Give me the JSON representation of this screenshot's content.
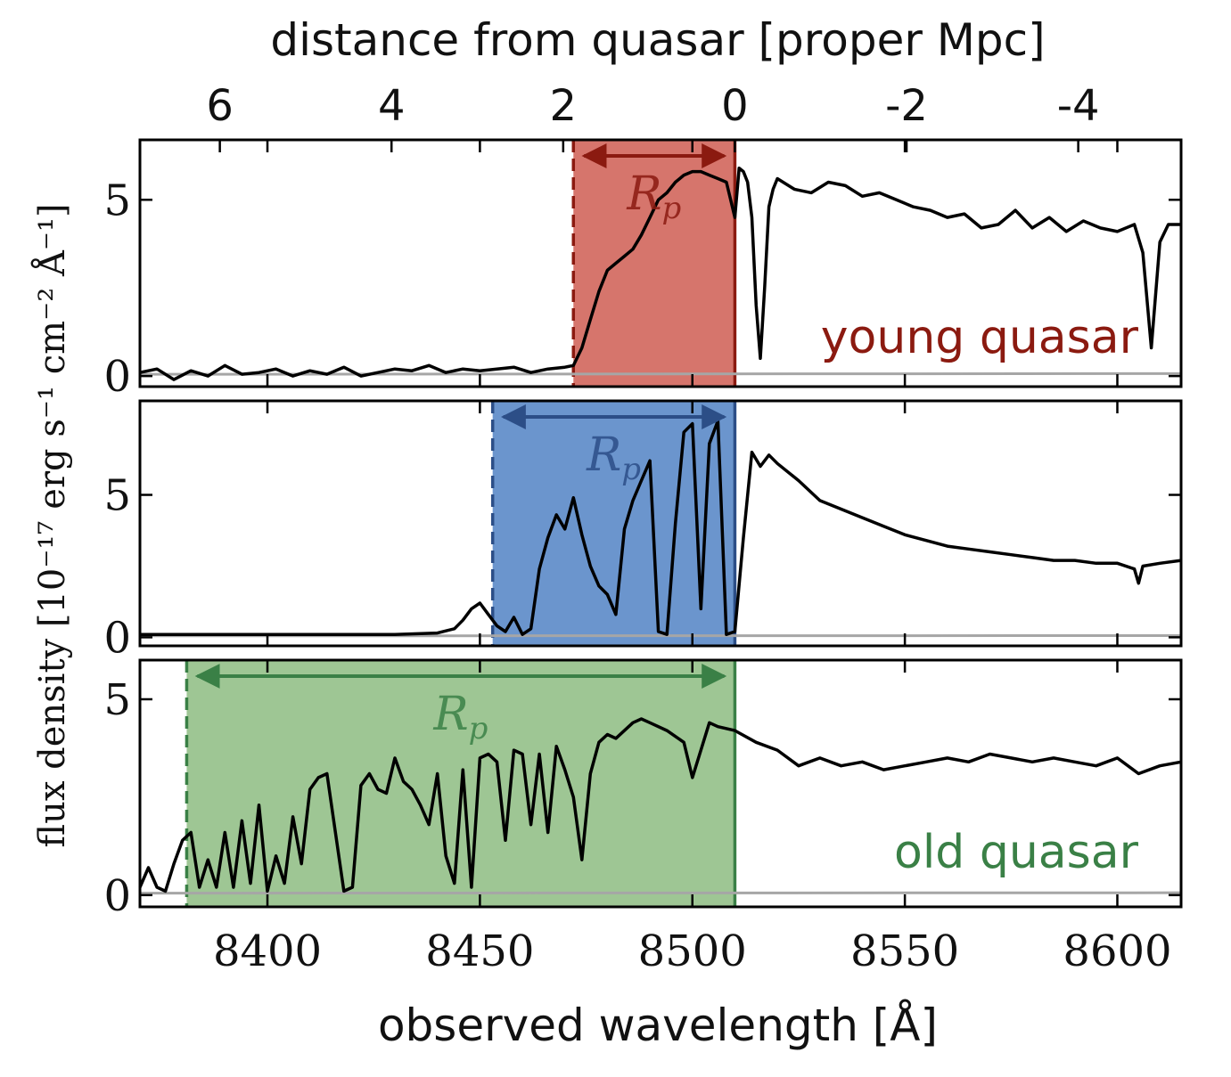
{
  "figure": {
    "top_axis_label": "distance from quasar [proper Mpc]",
    "bottom_axis_label": "observed wavelength [Å]",
    "y_axis_label": "flux density [10⁻¹⁷ erg s⁻¹ cm⁻² Å⁻¹]",
    "ruler_label": "Rp"
  },
  "chart_data": {
    "type": "line",
    "x_axis": {
      "label": "observed wavelength [Å]",
      "range": [
        8370,
        8615
      ],
      "ticks": [
        8400,
        8450,
        8500,
        8550,
        8600
      ],
      "tick_labels": [
        "8400",
        "8450",
        "8500",
        "8550",
        "8600"
      ]
    },
    "top_axis": {
      "label": "distance from quasar [proper Mpc]",
      "ticks": [
        6,
        4,
        2,
        0,
        -2,
        -4
      ],
      "tick_labels": [
        "6",
        "4",
        "2",
        "0",
        "-2",
        "-4"
      ],
      "wavelength_at_zero": 8510,
      "angstrom_per_mpc": 20.2
    },
    "y_axis_label": "flux density [10⁻¹⁷ erg s⁻¹ cm⁻² Å⁻¹]",
    "grid": false,
    "panels": [
      {
        "label": "young quasar",
        "color": "#8b1a10",
        "fill": "#d6756c",
        "ylim": [
          -0.3,
          6.7
        ],
        "yticks": [
          0,
          5
        ],
        "ytick_labels": [
          "0",
          "5"
        ],
        "region": [
          8472,
          8510
        ],
        "arrow_label": "Rp",
        "spectrum": {
          "x": [
            8370,
            8374,
            8378,
            8382,
            8386,
            8390,
            8394,
            8398,
            8402,
            8406,
            8410,
            8414,
            8418,
            8422,
            8426,
            8430,
            8434,
            8438,
            8442,
            8446,
            8450,
            8454,
            8458,
            8462,
            8466,
            8470,
            8472,
            8474,
            8476,
            8478,
            8480,
            8482,
            8484,
            8486,
            8488,
            8490,
            8492,
            8494,
            8496,
            8498,
            8500,
            8502,
            8504,
            8506,
            8508,
            8509,
            8510,
            8511,
            8512,
            8513,
            8514,
            8515,
            8516,
            8517,
            8518,
            8519,
            8520,
            8524,
            8528,
            8532,
            8536,
            8540,
            8544,
            8548,
            8552,
            8556,
            8560,
            8564,
            8568,
            8572,
            8576,
            8580,
            8584,
            8588,
            8592,
            8596,
            8600,
            8604,
            8606,
            8608,
            8610,
            8612,
            8615
          ],
          "y": [
            0.1,
            0.2,
            -0.1,
            0.15,
            0.0,
            0.3,
            0.05,
            0.1,
            0.2,
            0.0,
            0.15,
            0.05,
            0.25,
            0.0,
            0.1,
            0.2,
            0.15,
            0.3,
            0.1,
            0.2,
            0.15,
            0.2,
            0.25,
            0.1,
            0.2,
            0.25,
            0.3,
            0.8,
            1.6,
            2.4,
            3.0,
            3.2,
            3.4,
            3.6,
            4.0,
            4.5,
            5.0,
            5.2,
            5.5,
            5.7,
            5.8,
            5.8,
            5.7,
            5.6,
            5.5,
            5.0,
            4.5,
            5.9,
            5.8,
            5.5,
            4.5,
            2.0,
            0.5,
            2.5,
            4.8,
            5.3,
            5.6,
            5.3,
            5.2,
            5.5,
            5.4,
            5.1,
            5.2,
            5.0,
            4.8,
            4.7,
            4.5,
            4.6,
            4.2,
            4.3,
            4.7,
            4.2,
            4.5,
            4.1,
            4.4,
            4.2,
            4.1,
            4.3,
            3.5,
            0.8,
            3.8,
            4.3,
            4.3
          ]
        },
        "error": {
          "x": [
            8370,
            8615
          ],
          "y": [
            0.05,
            0.07
          ]
        }
      },
      {
        "label": "",
        "color": "#2c4e87",
        "fill": "#6b95cd",
        "ylim": [
          -0.3,
          8.3
        ],
        "yticks": [
          0,
          5
        ],
        "ytick_labels": [
          "0",
          "5"
        ],
        "region": [
          8453,
          8510
        ],
        "arrow_label": "Rp",
        "spectrum": {
          "x": [
            8370,
            8380,
            8390,
            8400,
            8410,
            8420,
            8430,
            8440,
            8444,
            8446,
            8448,
            8450,
            8452,
            8454,
            8456,
            8458,
            8460,
            8462,
            8464,
            8466,
            8468,
            8470,
            8472,
            8474,
            8476,
            8478,
            8480,
            8482,
            8484,
            8486,
            8488,
            8490,
            8492,
            8494,
            8496,
            8498,
            8500,
            8502,
            8504,
            8506,
            8508,
            8510,
            8512,
            8514,
            8516,
            8518,
            8520,
            8525,
            8530,
            8535,
            8540,
            8545,
            8550,
            8555,
            8560,
            8565,
            8570,
            8575,
            8580,
            8585,
            8590,
            8595,
            8600,
            8604,
            8605,
            8606,
            8610,
            8615
          ],
          "y": [
            0.1,
            0.1,
            0.1,
            0.1,
            0.1,
            0.1,
            0.1,
            0.15,
            0.3,
            0.6,
            1.0,
            1.2,
            0.8,
            0.4,
            0.2,
            0.7,
            0.1,
            0.3,
            2.4,
            3.5,
            4.3,
            3.8,
            4.9,
            3.6,
            2.5,
            1.8,
            1.5,
            0.8,
            3.8,
            4.8,
            5.5,
            6.2,
            0.2,
            0.1,
            4.0,
            7.2,
            7.5,
            1.0,
            6.8,
            7.6,
            0.1,
            0.2,
            3.5,
            6.5,
            6.0,
            6.4,
            6.1,
            5.5,
            4.8,
            4.5,
            4.2,
            3.9,
            3.6,
            3.4,
            3.2,
            3.1,
            3.0,
            2.9,
            2.8,
            2.7,
            2.7,
            2.6,
            2.6,
            2.4,
            1.9,
            2.5,
            2.6,
            2.7
          ]
        },
        "error": {
          "x": [
            8370,
            8615
          ],
          "y": [
            0.05,
            0.06
          ]
        }
      },
      {
        "label": "old quasar",
        "color": "#3a8046",
        "fill": "#9ec694",
        "ylim": [
          -0.3,
          6.0
        ],
        "yticks": [
          0,
          5
        ],
        "ytick_labels": [
          "0",
          "5"
        ],
        "region": [
          8381,
          8510
        ],
        "arrow_label": "Rp",
        "spectrum": {
          "x": [
            8370,
            8372,
            8374,
            8376,
            8378,
            8380,
            8382,
            8384,
            8386,
            8388,
            8390,
            8392,
            8394,
            8396,
            8398,
            8400,
            8402,
            8404,
            8406,
            8408,
            8410,
            8412,
            8414,
            8416,
            8418,
            8420,
            8422,
            8424,
            8426,
            8428,
            8430,
            8432,
            8434,
            8436,
            8438,
            8440,
            8442,
            8444,
            8446,
            8448,
            8450,
            8452,
            8454,
            8456,
            8458,
            8460,
            8462,
            8464,
            8466,
            8468,
            8470,
            8472,
            8474,
            8476,
            8478,
            8480,
            8482,
            8484,
            8486,
            8488,
            8490,
            8494,
            8498,
            8500,
            8502,
            8504,
            8506,
            8510,
            8515,
            8520,
            8525,
            8530,
            8535,
            8540,
            8545,
            8550,
            8555,
            8560,
            8565,
            8570,
            8575,
            8580,
            8585,
            8590,
            8595,
            8600,
            8605,
            8610,
            8615
          ],
          "y": [
            0.2,
            0.7,
            0.2,
            0.1,
            0.8,
            1.4,
            1.6,
            0.2,
            0.9,
            0.2,
            1.6,
            0.2,
            1.9,
            0.3,
            2.3,
            0.1,
            1.0,
            0.3,
            2.0,
            0.8,
            2.7,
            3.0,
            3.1,
            1.6,
            0.1,
            0.2,
            2.8,
            3.1,
            2.7,
            2.6,
            3.5,
            2.9,
            2.7,
            2.3,
            1.8,
            3.1,
            1.0,
            0.3,
            3.2,
            0.2,
            3.5,
            3.6,
            3.4,
            1.4,
            3.7,
            3.6,
            1.8,
            3.6,
            1.6,
            3.8,
            3.2,
            2.5,
            0.9,
            3.1,
            3.9,
            4.1,
            4.0,
            4.2,
            4.4,
            4.5,
            4.4,
            4.2,
            3.9,
            3.0,
            3.7,
            4.4,
            4.3,
            4.2,
            3.9,
            3.7,
            3.3,
            3.5,
            3.3,
            3.4,
            3.2,
            3.3,
            3.4,
            3.5,
            3.4,
            3.6,
            3.5,
            3.4,
            3.5,
            3.4,
            3.3,
            3.5,
            3.1,
            3.3,
            3.4
          ]
        },
        "error": {
          "x": [
            8370,
            8615
          ],
          "y": [
            0.05,
            0.06
          ]
        }
      }
    ]
  }
}
